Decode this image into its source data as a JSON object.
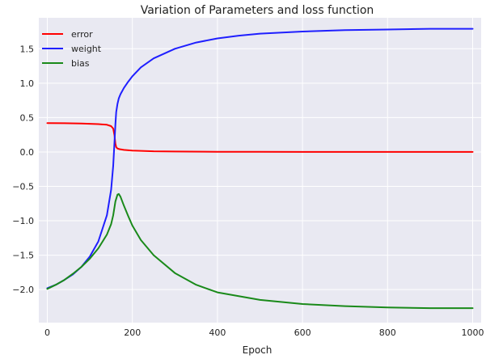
{
  "chart_data": {
    "type": "line",
    "title": "Variation of Parameters and loss function",
    "xlabel": "Epoch",
    "ylabel": "",
    "xlim": [
      -20,
      1020
    ],
    "ylim": [
      -2.48,
      1.95
    ],
    "xticks": [
      0,
      200,
      400,
      600,
      800,
      1000
    ],
    "yticks": [
      -2.0,
      -1.5,
      -1.0,
      -0.5,
      0.0,
      0.5,
      1.0,
      1.5
    ],
    "xtick_labels": [
      "0",
      "200",
      "400",
      "600",
      "800",
      "1000"
    ],
    "ytick_labels": [
      "−2.0",
      "−1.5",
      "−1.0",
      "−0.5",
      "0.0",
      "0.5",
      "1.0",
      "1.5"
    ],
    "grid": true,
    "legend_position": "top-left",
    "series": [
      {
        "name": "error",
        "color": "#ff0000",
        "x": [
          0,
          40,
          80,
          120,
          140,
          150,
          155,
          158,
          160,
          162,
          165,
          170,
          180,
          200,
          250,
          300,
          400,
          500,
          600,
          700,
          800,
          900,
          1000
        ],
        "y": [
          0.42,
          0.418,
          0.414,
          0.405,
          0.395,
          0.375,
          0.34,
          0.24,
          0.12,
          0.07,
          0.05,
          0.04,
          0.03,
          0.02,
          0.01,
          0.006,
          0.003,
          0.002,
          0.001,
          0.001,
          0.001,
          0.0,
          0.0
        ]
      },
      {
        "name": "weight",
        "color": "#1f1fff",
        "x": [
          0,
          20,
          40,
          60,
          80,
          100,
          120,
          140,
          150,
          155,
          158,
          160,
          162,
          165,
          168,
          172,
          180,
          190,
          200,
          220,
          250,
          300,
          350,
          400,
          450,
          500,
          600,
          700,
          800,
          900,
          1000
        ],
        "y": [
          -1.98,
          -1.93,
          -1.86,
          -1.78,
          -1.67,
          -1.52,
          -1.3,
          -0.92,
          -0.55,
          -0.2,
          0.15,
          0.4,
          0.58,
          0.7,
          0.78,
          0.84,
          0.93,
          1.02,
          1.1,
          1.23,
          1.36,
          1.5,
          1.59,
          1.65,
          1.69,
          1.72,
          1.75,
          1.77,
          1.78,
          1.79,
          1.79
        ]
      },
      {
        "name": "bias",
        "color": "#1a8a1a",
        "x": [
          0,
          20,
          40,
          60,
          80,
          100,
          120,
          140,
          150,
          155,
          160,
          165,
          168,
          172,
          180,
          190,
          200,
          220,
          250,
          300,
          350,
          400,
          500,
          600,
          700,
          800,
          900,
          1000
        ],
        "y": [
          -1.99,
          -1.93,
          -1.86,
          -1.77,
          -1.67,
          -1.55,
          -1.4,
          -1.2,
          -1.05,
          -0.92,
          -0.72,
          -0.62,
          -0.61,
          -0.65,
          -0.78,
          -0.93,
          -1.07,
          -1.28,
          -1.5,
          -1.76,
          -1.93,
          -2.04,
          -2.15,
          -2.21,
          -2.24,
          -2.26,
          -2.27,
          -2.27
        ]
      }
    ]
  },
  "colors": {
    "plot_background": "#e9e9f2",
    "grid": "#ffffff",
    "text": "#222222"
  }
}
